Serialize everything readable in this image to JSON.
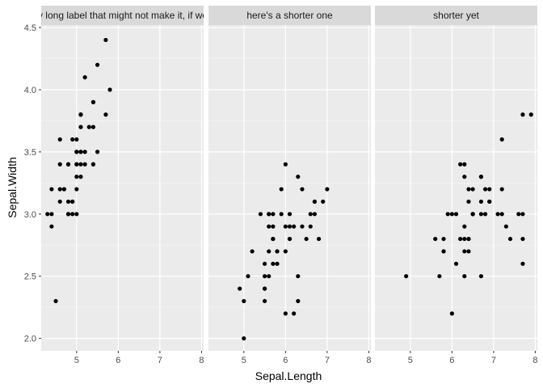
{
  "chart_data": {
    "type": "scatter",
    "xlabel": "Sepal.Length",
    "ylabel": "Sepal.Width",
    "xlim": [
      4.15,
      8.05
    ],
    "ylim": [
      1.9,
      4.52
    ],
    "x_ticks": [
      5,
      6,
      7,
      8
    ],
    "y_ticks": [
      2.0,
      2.5,
      3.0,
      3.5,
      4.0,
      4.5
    ],
    "y_tick_labels": [
      "2.0",
      "2.5",
      "3.0",
      "3.5",
      "4.0",
      "4.5"
    ],
    "grid": true,
    "point_color": "#000000",
    "panel_background": "#ebebeb",
    "strip_background": "#d9d9d9",
    "panels": [
      {
        "label": "pretty long label that might not make it, if we're b",
        "points": [
          [
            5.1,
            3.5
          ],
          [
            4.9,
            3.0
          ],
          [
            4.7,
            3.2
          ],
          [
            4.6,
            3.1
          ],
          [
            5.0,
            3.6
          ],
          [
            5.4,
            3.9
          ],
          [
            4.6,
            3.4
          ],
          [
            5.0,
            3.4
          ],
          [
            4.4,
            2.9
          ],
          [
            4.9,
            3.1
          ],
          [
            5.4,
            3.7
          ],
          [
            4.8,
            3.4
          ],
          [
            4.8,
            3.0
          ],
          [
            4.3,
            3.0
          ],
          [
            5.8,
            4.0
          ],
          [
            5.7,
            4.4
          ],
          [
            5.4,
            3.9
          ],
          [
            5.1,
            3.5
          ],
          [
            5.7,
            3.8
          ],
          [
            5.1,
            3.8
          ],
          [
            5.4,
            3.4
          ],
          [
            5.1,
            3.7
          ],
          [
            4.6,
            3.6
          ],
          [
            5.1,
            3.3
          ],
          [
            4.8,
            3.4
          ],
          [
            5.0,
            3.0
          ],
          [
            5.0,
            3.4
          ],
          [
            5.2,
            3.5
          ],
          [
            5.2,
            3.4
          ],
          [
            4.7,
            3.2
          ],
          [
            4.8,
            3.1
          ],
          [
            5.4,
            3.4
          ],
          [
            5.2,
            4.1
          ],
          [
            5.5,
            4.2
          ],
          [
            4.9,
            3.1
          ],
          [
            5.0,
            3.2
          ],
          [
            5.5,
            3.5
          ],
          [
            4.9,
            3.6
          ],
          [
            4.4,
            3.0
          ],
          [
            5.1,
            3.4
          ],
          [
            5.0,
            3.5
          ],
          [
            4.5,
            2.3
          ],
          [
            4.4,
            3.2
          ],
          [
            5.0,
            3.5
          ],
          [
            5.1,
            3.8
          ],
          [
            4.8,
            3.0
          ],
          [
            5.1,
            3.8
          ],
          [
            4.6,
            3.2
          ],
          [
            5.3,
            3.7
          ],
          [
            5.0,
            3.3
          ]
        ]
      },
      {
        "label": "here's a shorter one",
        "points": [
          [
            7.0,
            3.2
          ],
          [
            6.4,
            3.2
          ],
          [
            6.9,
            3.1
          ],
          [
            5.5,
            2.3
          ],
          [
            6.5,
            2.8
          ],
          [
            5.7,
            2.8
          ],
          [
            6.3,
            3.3
          ],
          [
            4.9,
            2.4
          ],
          [
            6.6,
            2.9
          ],
          [
            5.2,
            2.7
          ],
          [
            5.0,
            2.0
          ],
          [
            5.9,
            3.0
          ],
          [
            6.0,
            2.2
          ],
          [
            6.1,
            2.9
          ],
          [
            5.6,
            2.9
          ],
          [
            6.7,
            3.1
          ],
          [
            5.6,
            3.0
          ],
          [
            5.8,
            2.7
          ],
          [
            6.2,
            2.2
          ],
          [
            5.6,
            2.5
          ],
          [
            5.9,
            3.2
          ],
          [
            6.1,
            2.8
          ],
          [
            6.3,
            2.5
          ],
          [
            6.1,
            2.8
          ],
          [
            6.4,
            2.9
          ],
          [
            6.6,
            3.0
          ],
          [
            6.8,
            2.8
          ],
          [
            6.7,
            3.0
          ],
          [
            6.0,
            2.9
          ],
          [
            5.7,
            2.6
          ],
          [
            5.5,
            2.4
          ],
          [
            5.5,
            2.4
          ],
          [
            5.8,
            2.7
          ],
          [
            6.0,
            2.7
          ],
          [
            5.4,
            3.0
          ],
          [
            6.0,
            3.4
          ],
          [
            6.7,
            3.1
          ],
          [
            6.3,
            2.3
          ],
          [
            5.6,
            3.0
          ],
          [
            5.5,
            2.5
          ],
          [
            5.5,
            2.6
          ],
          [
            6.1,
            3.0
          ],
          [
            5.8,
            2.6
          ],
          [
            5.0,
            2.3
          ],
          [
            5.6,
            2.7
          ],
          [
            5.7,
            3.0
          ],
          [
            5.7,
            2.9
          ],
          [
            6.2,
            2.9
          ],
          [
            5.1,
            2.5
          ],
          [
            5.7,
            2.8
          ]
        ]
      },
      {
        "label": "shorter yet",
        "points": [
          [
            6.3,
            3.3
          ],
          [
            5.8,
            2.7
          ],
          [
            7.1,
            3.0
          ],
          [
            6.3,
            2.9
          ],
          [
            6.5,
            3.0
          ],
          [
            7.6,
            3.0
          ],
          [
            4.9,
            2.5
          ],
          [
            7.3,
            2.9
          ],
          [
            6.7,
            2.5
          ],
          [
            7.2,
            3.6
          ],
          [
            6.5,
            3.2
          ],
          [
            6.4,
            2.7
          ],
          [
            6.8,
            3.0
          ],
          [
            5.7,
            2.5
          ],
          [
            5.8,
            2.8
          ],
          [
            6.4,
            3.2
          ],
          [
            6.5,
            3.0
          ],
          [
            7.7,
            3.8
          ],
          [
            7.7,
            2.6
          ],
          [
            6.0,
            2.2
          ],
          [
            6.9,
            3.2
          ],
          [
            5.6,
            2.8
          ],
          [
            7.7,
            2.8
          ],
          [
            6.3,
            2.7
          ],
          [
            6.7,
            3.3
          ],
          [
            7.2,
            3.2
          ],
          [
            6.2,
            2.8
          ],
          [
            6.1,
            3.0
          ],
          [
            6.4,
            2.8
          ],
          [
            7.2,
            3.0
          ],
          [
            7.4,
            2.8
          ],
          [
            7.9,
            3.8
          ],
          [
            6.4,
            2.8
          ],
          [
            6.3,
            2.8
          ],
          [
            6.1,
            2.6
          ],
          [
            7.7,
            3.0
          ],
          [
            6.3,
            3.4
          ],
          [
            6.4,
            3.1
          ],
          [
            6.0,
            3.0
          ],
          [
            6.9,
            3.1
          ],
          [
            6.7,
            3.1
          ],
          [
            6.9,
            3.1
          ],
          [
            5.8,
            2.7
          ],
          [
            6.8,
            3.2
          ],
          [
            6.7,
            3.3
          ],
          [
            6.7,
            3.0
          ],
          [
            6.3,
            2.5
          ],
          [
            6.5,
            3.0
          ],
          [
            6.2,
            3.4
          ],
          [
            5.9,
            3.0
          ]
        ]
      }
    ]
  }
}
